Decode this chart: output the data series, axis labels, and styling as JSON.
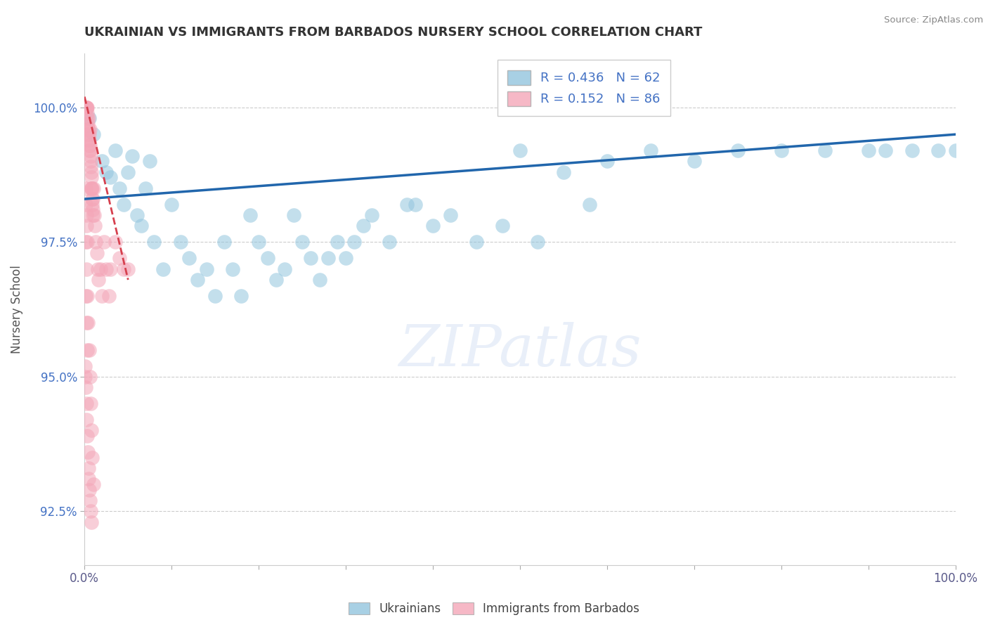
{
  "title": "UKRAINIAN VS IMMIGRANTS FROM BARBADOS NURSERY SCHOOL CORRELATION CHART",
  "source": "Source: ZipAtlas.com",
  "ylabel": "Nursery School",
  "legend_blue_r": "R = 0.436",
  "legend_blue_n": "N = 62",
  "legend_pink_r": "R = 0.152",
  "legend_pink_n": "N = 86",
  "blue_color": "#92c5de",
  "pink_color": "#f4a6b8",
  "trendline_blue": "#2166ac",
  "trendline_pink": "#d6404e",
  "watermark": "ZIPatlas",
  "blue_x": [
    0.5,
    1.0,
    2.0,
    2.5,
    3.0,
    3.5,
    4.0,
    4.5,
    5.0,
    5.5,
    6.0,
    6.5,
    7.0,
    7.5,
    8.0,
    9.0,
    10.0,
    11.0,
    12.0,
    13.0,
    14.0,
    15.0,
    16.0,
    17.0,
    18.0,
    19.0,
    20.0,
    21.0,
    22.0,
    23.0,
    24.0,
    25.0,
    26.0,
    27.0,
    28.0,
    29.0,
    30.0,
    31.0,
    32.0,
    33.0,
    35.0,
    37.0,
    40.0,
    45.0,
    50.0,
    55.0,
    60.0,
    65.0,
    70.0,
    75.0,
    80.0,
    85.0,
    90.0,
    92.0,
    95.0,
    98.0,
    100.0,
    38.0,
    42.0,
    48.0,
    52.0,
    58.0
  ],
  "blue_y": [
    99.8,
    99.5,
    99.0,
    98.8,
    98.7,
    99.2,
    98.5,
    98.2,
    98.8,
    99.1,
    98.0,
    97.8,
    98.5,
    99.0,
    97.5,
    97.0,
    98.2,
    97.5,
    97.2,
    96.8,
    97.0,
    96.5,
    97.5,
    97.0,
    96.5,
    98.0,
    97.5,
    97.2,
    96.8,
    97.0,
    98.0,
    97.5,
    97.2,
    96.8,
    97.2,
    97.5,
    97.2,
    97.5,
    97.8,
    98.0,
    97.5,
    98.2,
    97.8,
    97.5,
    99.2,
    98.8,
    99.0,
    99.2,
    99.0,
    99.2,
    99.2,
    99.2,
    99.2,
    99.2,
    99.2,
    99.2,
    99.2,
    98.2,
    98.0,
    97.8,
    97.5,
    98.2
  ],
  "pink_x": [
    0.05,
    0.08,
    0.1,
    0.12,
    0.15,
    0.18,
    0.2,
    0.22,
    0.25,
    0.28,
    0.3,
    0.32,
    0.35,
    0.38,
    0.4,
    0.42,
    0.45,
    0.48,
    0.5,
    0.52,
    0.55,
    0.58,
    0.6,
    0.62,
    0.65,
    0.68,
    0.7,
    0.72,
    0.75,
    0.78,
    0.8,
    0.82,
    0.85,
    0.88,
    0.9,
    0.92,
    0.95,
    0.98,
    1.0,
    1.1,
    1.2,
    1.3,
    1.4,
    1.5,
    1.6,
    1.8,
    2.0,
    2.2,
    2.5,
    2.8,
    3.0,
    3.5,
    4.0,
    4.5,
    5.0,
    0.1,
    0.15,
    0.2,
    0.25,
    0.3,
    0.1,
    0.2,
    0.3,
    0.4,
    0.5,
    0.6,
    0.7,
    0.8,
    0.9,
    1.0,
    0.1,
    0.2,
    0.3,
    0.05,
    0.08,
    0.12,
    0.18,
    0.22,
    0.28,
    0.35,
    0.42,
    0.48,
    0.55,
    0.62,
    0.68,
    0.75
  ],
  "pink_y": [
    100.0,
    100.0,
    100.0,
    100.0,
    100.0,
    100.0,
    100.0,
    100.0,
    100.0,
    100.0,
    99.8,
    99.9,
    99.7,
    99.6,
    99.5,
    99.8,
    99.6,
    99.4,
    99.3,
    99.2,
    99.4,
    99.5,
    99.6,
    99.3,
    99.2,
    99.1,
    99.0,
    98.9,
    98.8,
    98.7,
    98.5,
    98.5,
    98.3,
    98.5,
    98.2,
    98.3,
    98.0,
    98.1,
    98.5,
    98.0,
    97.8,
    97.5,
    97.3,
    97.0,
    96.8,
    97.0,
    96.5,
    97.5,
    97.0,
    96.5,
    97.0,
    97.5,
    97.2,
    97.0,
    97.0,
    98.5,
    98.2,
    98.0,
    97.8,
    97.5,
    97.5,
    97.0,
    96.5,
    96.0,
    95.5,
    95.0,
    94.5,
    94.0,
    93.5,
    93.0,
    96.5,
    96.0,
    95.5,
    95.2,
    95.0,
    94.8,
    94.5,
    94.2,
    93.9,
    93.6,
    93.3,
    93.1,
    92.9,
    92.7,
    92.5,
    92.3
  ],
  "xlim": [
    0,
    100
  ],
  "ylim": [
    91.5,
    101.0
  ],
  "yticks": [
    92.5,
    95.0,
    97.5,
    100.0
  ],
  "ytick_labels": [
    "92.5%",
    "95.0%",
    "97.5%",
    "100.0%"
  ],
  "blue_trend_x0": 0,
  "blue_trend_x1": 100,
  "blue_trend_y0": 98.3,
  "blue_trend_y1": 99.5,
  "pink_trend_x0": 0,
  "pink_trend_x1": 5,
  "pink_trend_y0": 100.2,
  "pink_trend_y1": 96.8
}
